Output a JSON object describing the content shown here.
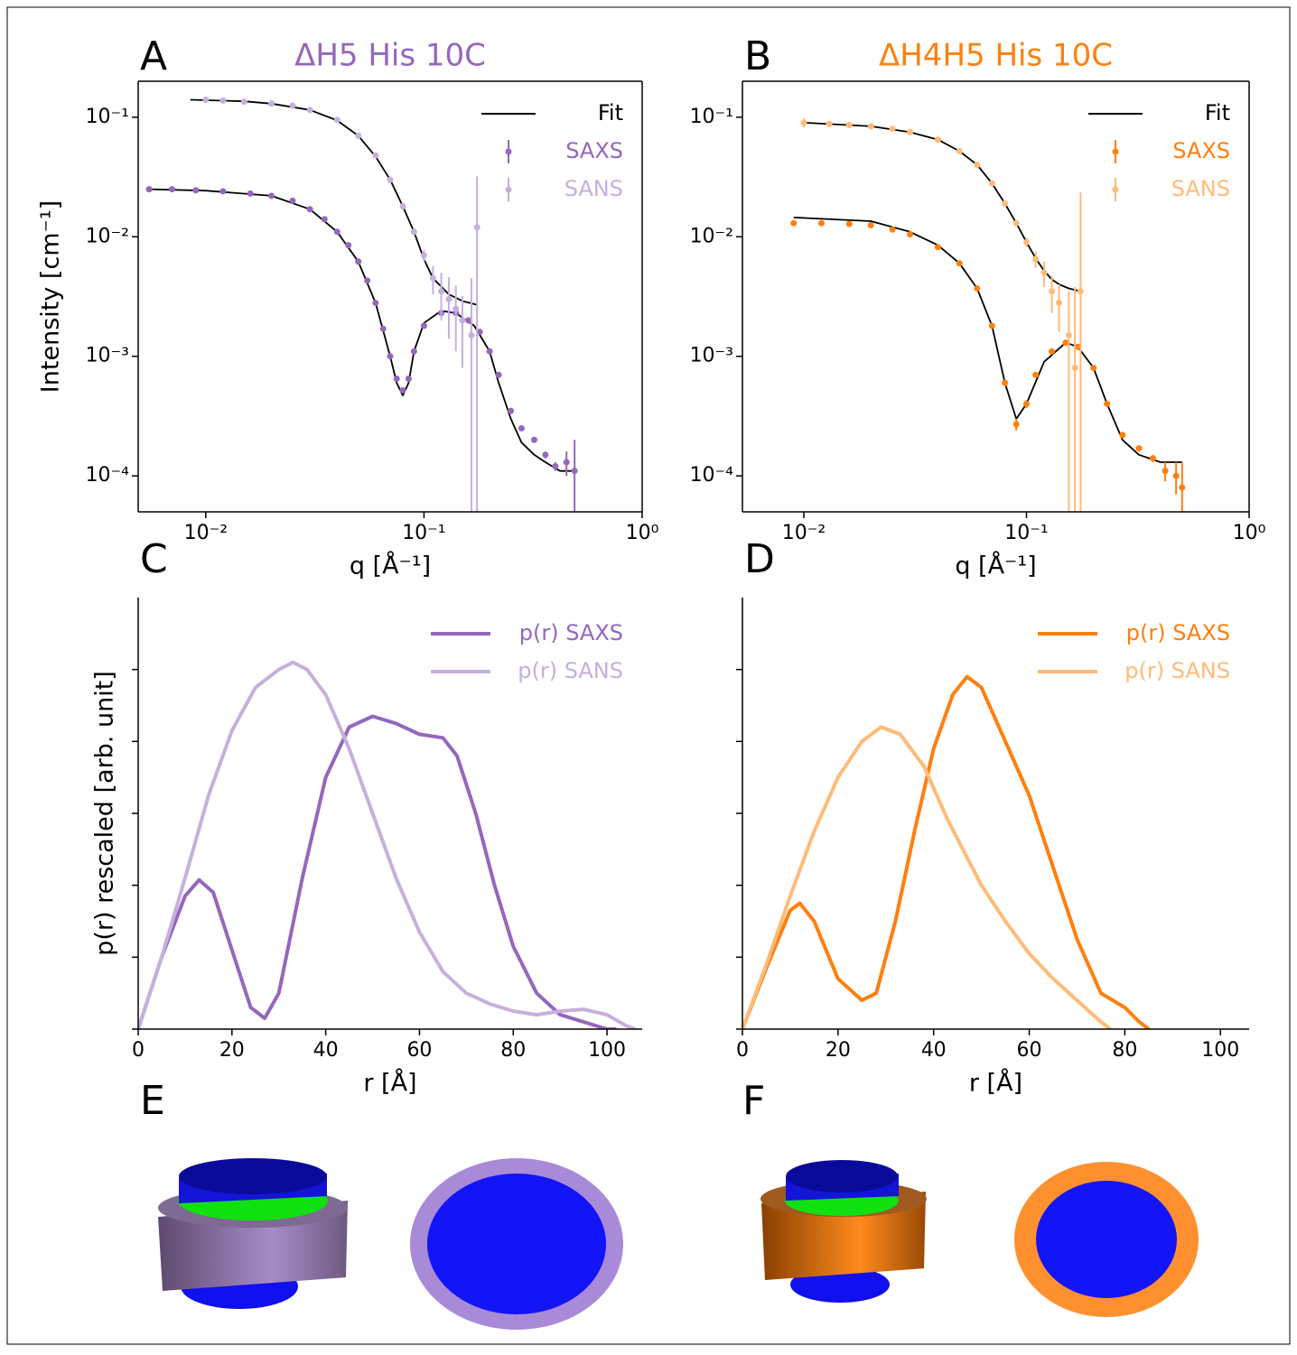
{
  "chart_data": [
    {
      "type": "scatter",
      "panel_label": "A",
      "title": "ΔH5 His 10C",
      "title_color": "#9467bd",
      "xlabel": "q [Å⁻¹]",
      "ylabel": "Intensity [cm⁻¹]",
      "xscale": "log",
      "yscale": "log",
      "xlim": [
        0.0049,
        1
      ],
      "ylim": [
        5e-05,
        0.2
      ],
      "xticks": [
        {
          "value": 0.01,
          "label": "10⁻²"
        },
        {
          "value": 0.1,
          "label": "10⁻¹"
        },
        {
          "value": 1,
          "label": "10⁰"
        }
      ],
      "yticks": [
        {
          "value": 0.0001,
          "label": "10⁻⁴"
        },
        {
          "value": 0.001,
          "label": "10⁻³"
        },
        {
          "value": 0.01,
          "label": "10⁻²"
        },
        {
          "value": 0.1,
          "label": "10⁻¹"
        }
      ],
      "spines": [
        "left",
        "bottom",
        "right",
        "top"
      ],
      "legend": "upper right",
      "series": [
        {
          "name": "Fit",
          "type": "line",
          "color": "#000000",
          "x": [
            0.0085,
            0.015,
            0.02,
            0.03,
            0.04,
            0.05,
            0.06,
            0.07,
            0.08,
            0.09,
            0.1,
            0.11,
            0.13,
            0.15,
            0.175,
            null,
            0.0055,
            0.01,
            0.02,
            0.03,
            0.04,
            0.05,
            0.06,
            0.07,
            0.075,
            0.08,
            0.085,
            0.09,
            0.1,
            0.12,
            0.14,
            0.17,
            0.2,
            0.22,
            0.25,
            0.28,
            0.32,
            0.36,
            0.42,
            0.49
          ],
          "values": [
            0.14,
            0.136,
            0.13,
            0.115,
            0.094,
            0.07,
            0.047,
            0.03,
            0.018,
            0.011,
            0.0065,
            0.0045,
            0.0033,
            0.0029,
            0.0027,
            null,
            0.025,
            0.0243,
            0.022,
            0.017,
            0.011,
            0.0062,
            0.0028,
            0.001,
            0.0006,
            0.00047,
            0.0006,
            0.0011,
            0.0019,
            0.0024,
            0.0023,
            0.0018,
            0.0011,
            0.0006,
            0.0003,
            0.00019,
            0.00015,
            0.00013,
            0.00011,
            0.00011
          ]
        },
        {
          "name": "SAXS",
          "type": "errorbar",
          "color": "#9467bd",
          "x": [
            0.0055,
            0.007,
            0.009,
            0.012,
            0.016,
            0.02,
            0.025,
            0.03,
            0.035,
            0.04,
            0.045,
            0.05,
            0.055,
            0.06,
            0.065,
            0.07,
            0.075,
            0.08,
            0.085,
            0.09,
            0.1,
            0.12,
            0.14,
            0.16,
            0.18,
            0.2,
            0.22,
            0.25,
            0.28,
            0.32,
            0.36,
            0.4,
            0.45,
            0.49
          ],
          "values": [
            0.025,
            0.025,
            0.0245,
            0.024,
            0.023,
            0.022,
            0.02,
            0.017,
            0.014,
            0.011,
            0.0085,
            0.0062,
            0.0043,
            0.0028,
            0.0017,
            0.001,
            0.00065,
            0.00052,
            0.00065,
            0.0011,
            0.0018,
            0.0023,
            0.0023,
            0.002,
            0.0016,
            0.0011,
            0.0007,
            0.00035,
            0.00025,
            0.0002,
            0.00015,
            0.00012,
            0.00013,
            0.00011
          ],
          "errors": [
            0.0004,
            0.0003,
            0.0003,
            0.0003,
            0.0003,
            0.0003,
            0.0003,
            0.0002,
            0.0002,
            0.0002,
            0.0001,
            0.0001,
            0.0001,
            5e-05,
            4e-05,
            3e-05,
            2e-05,
            2e-05,
            2e-05,
            3e-05,
            4e-05,
            5e-05,
            5e-05,
            5e-05,
            4e-05,
            3e-05,
            2e-05,
            1e-05,
            1e-05,
            1e-05,
            1e-05,
            1e-05,
            3e-05,
            9e-05
          ]
        },
        {
          "name": "SANS",
          "type": "errorbar",
          "color": "#c5b0dd",
          "x": [
            0.01,
            0.012,
            0.015,
            0.02,
            0.025,
            0.03,
            0.04,
            0.05,
            0.06,
            0.07,
            0.08,
            0.09,
            0.1,
            0.11,
            0.12,
            0.13,
            0.14,
            0.15,
            0.165,
            0.175
          ],
          "values": [
            0.14,
            0.138,
            0.135,
            0.13,
            0.125,
            0.115,
            0.095,
            0.07,
            0.048,
            0.03,
            0.018,
            0.011,
            0.007,
            0.0045,
            0.0035,
            0.003,
            0.0025,
            0.002,
            0.0015,
            0.012
          ],
          "errors": [
            0.008,
            0.006,
            0.005,
            0.004,
            0.004,
            0.003,
            0.003,
            0.002,
            0.002,
            0.001,
            0.001,
            0.0008,
            0.0008,
            0.0012,
            0.0015,
            0.0016,
            0.0014,
            0.0012,
            0.003,
            0.02
          ]
        }
      ]
    },
    {
      "type": "scatter",
      "panel_label": "B",
      "title": "ΔH4H5 His 10C",
      "title_color": "#ff7f0e",
      "xlabel": "q [Å⁻¹]",
      "xscale": "log",
      "yscale": "log",
      "xlim": [
        0.0053,
        1
      ],
      "ylim": [
        5e-05,
        0.2
      ],
      "xticks": [
        {
          "value": 0.01,
          "label": "10⁻²"
        },
        {
          "value": 0.1,
          "label": "10⁻¹"
        },
        {
          "value": 1,
          "label": "10⁰"
        }
      ],
      "yticks": [
        {
          "value": 0.0001,
          "label": "10⁻⁴"
        },
        {
          "value": 0.001,
          "label": "10⁻³"
        },
        {
          "value": 0.01,
          "label": "10⁻²"
        },
        {
          "value": 0.1,
          "label": "10⁻¹"
        }
      ],
      "spines": [
        "left",
        "bottom",
        "right",
        "top"
      ],
      "legend": "upper right",
      "series": [
        {
          "name": "Fit",
          "type": "line",
          "color": "#000000",
          "x": [
            0.01,
            0.02,
            0.03,
            0.04,
            0.05,
            0.06,
            0.07,
            0.08,
            0.09,
            0.1,
            0.11,
            0.12,
            0.13,
            0.14,
            0.155,
            0.175,
            null,
            0.009,
            0.02,
            0.03,
            0.04,
            0.05,
            0.06,
            0.07,
            0.08,
            0.09,
            0.1,
            0.12,
            0.15,
            0.17,
            0.2,
            0.23,
            0.27,
            0.32,
            0.4,
            0.5
          ],
          "values": [
            0.09,
            0.084,
            0.075,
            0.065,
            0.052,
            0.04,
            0.028,
            0.019,
            0.013,
            0.009,
            0.0066,
            0.0052,
            0.0044,
            0.004,
            0.0037,
            0.0035,
            null,
            0.0145,
            0.0135,
            0.011,
            0.0085,
            0.006,
            0.0037,
            0.0018,
            0.0006,
            0.0003,
            0.0004,
            0.0009,
            0.0013,
            0.0012,
            0.0008,
            0.0004,
            0.0002,
            0.00015,
            0.00013,
            0.00013
          ]
        },
        {
          "name": "SAXS",
          "type": "errorbar",
          "color": "#ff7f0e",
          "x": [
            0.009,
            0.012,
            0.016,
            0.02,
            0.025,
            0.03,
            0.04,
            0.05,
            0.06,
            0.07,
            0.08,
            0.09,
            0.1,
            0.11,
            0.13,
            0.15,
            0.17,
            0.2,
            0.23,
            0.27,
            0.32,
            0.37,
            0.42,
            0.47,
            0.5
          ],
          "values": [
            0.013,
            0.013,
            0.0128,
            0.0125,
            0.0115,
            0.0105,
            0.0082,
            0.006,
            0.0037,
            0.0018,
            0.0006,
            0.00027,
            0.0004,
            0.0007,
            0.0011,
            0.0013,
            0.0012,
            0.0008,
            0.0004,
            0.00022,
            0.00017,
            0.00014,
            0.00011,
            0.0001,
            8e-05
          ],
          "errors": [
            0.0003,
            0.0003,
            0.0003,
            0.0003,
            0.0002,
            0.0002,
            0.0002,
            0.0001,
            0.0001,
            5e-05,
            3e-05,
            3e-05,
            3e-05,
            4e-05,
            5e-05,
            5e-05,
            5e-05,
            3e-05,
            2e-05,
            1e-05,
            1e-05,
            1e-05,
            2e-05,
            3e-05,
            5e-05
          ]
        },
        {
          "name": "SANS",
          "type": "errorbar",
          "color": "#ffbb78",
          "x": [
            0.01,
            0.013,
            0.016,
            0.02,
            0.025,
            0.03,
            0.04,
            0.05,
            0.06,
            0.07,
            0.08,
            0.09,
            0.1,
            0.11,
            0.12,
            0.13,
            0.14,
            0.155,
            0.165,
            0.175
          ],
          "values": [
            0.09,
            0.088,
            0.086,
            0.084,
            0.08,
            0.075,
            0.065,
            0.052,
            0.04,
            0.028,
            0.019,
            0.013,
            0.009,
            0.0065,
            0.005,
            0.0035,
            0.0028,
            0.0015,
            0.0008,
            0.0035
          ],
          "errors": [
            0.008,
            0.005,
            0.004,
            0.004,
            0.003,
            0.003,
            0.003,
            0.002,
            0.002,
            0.001,
            0.001,
            0.0008,
            0.0008,
            0.001,
            0.0012,
            0.0012,
            0.0012,
            0.002,
            0.003,
            0.02
          ]
        }
      ]
    },
    {
      "type": "line",
      "panel_label": "C",
      "xlabel": "r [Å]",
      "ylabel": "p(r) rescaled [arb. unit]",
      "xlim": [
        0,
        107.5
      ],
      "ylim": [
        0,
        1.2
      ],
      "xticks": [
        0,
        20,
        40,
        60,
        80,
        100
      ],
      "yticks": [
        0,
        0.2,
        0.4,
        0.6,
        0.8,
        1.0
      ],
      "ytick_labels": false,
      "spines": [
        "left",
        "bottom"
      ],
      "legend": "upper right",
      "series": [
        {
          "name": "p(r) SAXS",
          "color": "#9467bd",
          "x": [
            0,
            5,
            10,
            13,
            16,
            20,
            24,
            27,
            30,
            35,
            40,
            45,
            50,
            55,
            60,
            65,
            68,
            72,
            76,
            80,
            85,
            90,
            95,
            100,
            102
          ],
          "values": [
            0,
            0.2,
            0.37,
            0.415,
            0.38,
            0.22,
            0.06,
            0.03,
            0.1,
            0.42,
            0.7,
            0.84,
            0.87,
            0.85,
            0.82,
            0.81,
            0.76,
            0.6,
            0.4,
            0.23,
            0.1,
            0.04,
            0.02,
            0.0,
            0
          ]
        },
        {
          "name": "p(r) SANS",
          "color": "#c5b0dd",
          "x": [
            0,
            5,
            10,
            15,
            20,
            25,
            30,
            33,
            36,
            40,
            45,
            50,
            55,
            60,
            65,
            70,
            75,
            80,
            85,
            90,
            95,
            100,
            104,
            106
          ],
          "values": [
            0,
            0.2,
            0.42,
            0.65,
            0.83,
            0.95,
            1.0,
            1.02,
            1.0,
            0.93,
            0.78,
            0.6,
            0.42,
            0.27,
            0.16,
            0.1,
            0.07,
            0.05,
            0.04,
            0.05,
            0.055,
            0.04,
            0.01,
            0
          ]
        }
      ]
    },
    {
      "type": "line",
      "panel_label": "D",
      "xlabel": "r [Å]",
      "xlim": [
        0,
        106
      ],
      "ylim": [
        0,
        1.2
      ],
      "xticks": [
        0,
        20,
        40,
        60,
        80,
        100
      ],
      "yticks": [
        0,
        0.2,
        0.4,
        0.6,
        0.8,
        1.0
      ],
      "ytick_labels": false,
      "spines": [
        "left",
        "bottom"
      ],
      "legend": "upper right",
      "series": [
        {
          "name": "p(r) SAXS",
          "color": "#ff7f0e",
          "x": [
            0,
            5,
            10,
            12,
            15,
            20,
            25,
            28,
            32,
            36,
            40,
            44,
            47,
            50,
            55,
            60,
            65,
            70,
            75,
            80,
            83,
            85
          ],
          "values": [
            0,
            0.17,
            0.33,
            0.35,
            0.3,
            0.14,
            0.08,
            0.1,
            0.3,
            0.55,
            0.78,
            0.93,
            0.98,
            0.95,
            0.8,
            0.65,
            0.45,
            0.25,
            0.1,
            0.06,
            0.02,
            0
          ]
        },
        {
          "name": "p(r) SANS",
          "color": "#ffbb78",
          "x": [
            0,
            5,
            10,
            15,
            20,
            25,
            29,
            33,
            38,
            43,
            50,
            55,
            60,
            65,
            70,
            75,
            77
          ],
          "values": [
            0,
            0.18,
            0.37,
            0.55,
            0.7,
            0.8,
            0.84,
            0.82,
            0.73,
            0.58,
            0.4,
            0.3,
            0.21,
            0.14,
            0.08,
            0.02,
            0
          ]
        }
      ]
    }
  ],
  "illustrations": [
    {
      "panel_label": "E"
    },
    {
      "panel_label": "F"
    }
  ]
}
